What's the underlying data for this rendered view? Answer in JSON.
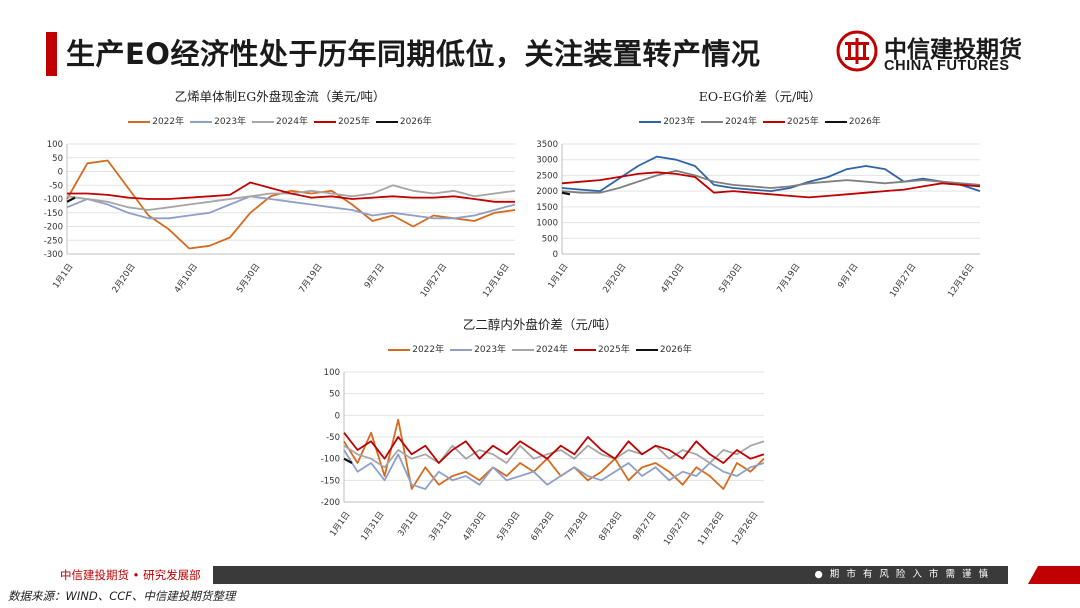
{
  "page": {
    "title": "生产EO经济性处于历年同期低位，关注装置转产情况",
    "logo_cn": "中信建投期货",
    "logo_en": "CHINA FUTURES",
    "footer_left": "中信建投期货 • 研究发展部",
    "footer_right": "● 期 市 有 风 险    入 市 需 谨 慎",
    "source": "数据来源：WIND、CCF、中信建投期货整理",
    "colors": {
      "accent_red": "#c00000",
      "s2022": "#d46b1f",
      "s2023": "#2e64a6",
      "s2023_alt": "#8ea0c8",
      "s2024": "#a6a6a6",
      "s2025": "#c00000",
      "s2026": "#111111"
    }
  },
  "chart_data": [
    {
      "type": "line",
      "title": "乙烯单体制EG外盘现金流（美元/吨）",
      "ylim": [
        -300,
        100
      ],
      "yticks": [
        100,
        50,
        0,
        -50,
        -100,
        -150,
        -200,
        -250,
        -300
      ],
      "xticks": [
        "1月1日",
        "2月20日",
        "4月10日",
        "5月30日",
        "7月19日",
        "9月7日",
        "10月27日",
        "12月16日"
      ],
      "series": [
        {
          "name": "2022年",
          "color": "#d46b1f",
          "values": [
            -100,
            30,
            40,
            -60,
            -160,
            -210,
            -280,
            -270,
            -240,
            -150,
            -90,
            -70,
            -80,
            -70,
            -120,
            -180,
            -160,
            -200,
            -160,
            -170,
            -180,
            -150,
            -140
          ]
        },
        {
          "name": "2023年",
          "color": "#8ea0c8",
          "values": [
            -130,
            -100,
            -120,
            -150,
            -170,
            -170,
            -160,
            -150,
            -120,
            -90,
            -100,
            -110,
            -120,
            -130,
            -140,
            -160,
            -150,
            -160,
            -170,
            -170,
            -160,
            -140,
            -120
          ]
        },
        {
          "name": "2024年",
          "color": "#a6a6a6",
          "values": [
            -90,
            -100,
            -110,
            -130,
            -140,
            -130,
            -120,
            -110,
            -100,
            -90,
            -80,
            -80,
            -70,
            -80,
            -90,
            -80,
            -50,
            -70,
            -80,
            -70,
            -90,
            -80,
            -70
          ]
        },
        {
          "name": "2025年",
          "color": "#c00000",
          "values": [
            -80,
            -80,
            -85,
            -95,
            -100,
            -100,
            -95,
            -90,
            -85,
            -40,
            -60,
            -80,
            -95,
            -90,
            -100,
            -95,
            -90,
            -95,
            -95,
            -90,
            -100,
            -110,
            -110
          ]
        },
        {
          "name": "2026年",
          "color": "#111111",
          "values": [
            -110,
            -95
          ]
        }
      ]
    },
    {
      "type": "line",
      "title": "EO-EG价差（元/吨）",
      "ylim": [
        0,
        3500
      ],
      "yticks": [
        3500,
        3000,
        2500,
        2000,
        1500,
        1000,
        500,
        0
      ],
      "xticks": [
        "1月1日",
        "2月20日",
        "4月10日",
        "5月30日",
        "7月19日",
        "9月7日",
        "10月27日",
        "12月16日"
      ],
      "series": [
        {
          "name": "2023年",
          "color": "#2e64a6",
          "values": [
            2100,
            2050,
            2000,
            2400,
            2800,
            3100,
            3000,
            2800,
            2200,
            2100,
            2050,
            2000,
            2100,
            2300,
            2450,
            2700,
            2800,
            2700,
            2300,
            2400,
            2300,
            2200,
            2000
          ]
        },
        {
          "name": "2024年",
          "color": "#7f7f7f",
          "values": [
            2000,
            1950,
            1950,
            2100,
            2300,
            2500,
            2650,
            2500,
            2300,
            2200,
            2150,
            2100,
            2150,
            2250,
            2300,
            2350,
            2300,
            2250,
            2300,
            2350,
            2300,
            2250,
            2200
          ]
        },
        {
          "name": "2025年",
          "color": "#c00000",
          "values": [
            2250,
            2300,
            2350,
            2450,
            2550,
            2600,
            2550,
            2450,
            1950,
            2000,
            1950,
            1900,
            1850,
            1800,
            1850,
            1900,
            1950,
            2000,
            2050,
            2150,
            2250,
            2200,
            2150
          ]
        },
        {
          "name": "2026年",
          "color": "#111111",
          "values": [
            1950,
            1900
          ]
        }
      ]
    },
    {
      "type": "line",
      "title": "乙二醇内外盘价差（元/吨）",
      "ylim": [
        -200,
        100
      ],
      "yticks": [
        100,
        50,
        0,
        -50,
        -100,
        -150,
        -200
      ],
      "xticks": [
        "1月1日",
        "1月31日",
        "3月1日",
        "3月31日",
        "4月30日",
        "5月30日",
        "6月29日",
        "7月29日",
        "8月28日",
        "9月27日",
        "10月27日",
        "11月26日",
        "12月26日"
      ],
      "series": [
        {
          "name": "2022年",
          "color": "#d46b1f",
          "values": [
            -60,
            -110,
            -40,
            -140,
            -10,
            -170,
            -120,
            -160,
            -140,
            -130,
            -150,
            -120,
            -140,
            -110,
            -130,
            -100,
            -140,
            -120,
            -150,
            -130,
            -100,
            -150,
            -120,
            -110,
            -130,
            -160,
            -120,
            -140,
            -170,
            -110,
            -130,
            -100
          ]
        },
        {
          "name": "2023年",
          "color": "#8ea0c8",
          "values": [
            -80,
            -130,
            -110,
            -150,
            -90,
            -160,
            -170,
            -130,
            -150,
            -140,
            -160,
            -120,
            -150,
            -140,
            -130,
            -160,
            -140,
            -120,
            -140,
            -150,
            -130,
            -110,
            -140,
            -120,
            -150,
            -130,
            -140,
            -110,
            -130,
            -140,
            -120,
            -110
          ]
        },
        {
          "name": "2024年",
          "color": "#a6a6a6",
          "values": [
            -70,
            -90,
            -100,
            -120,
            -80,
            -100,
            -90,
            -110,
            -70,
            -100,
            -80,
            -90,
            -110,
            -70,
            -100,
            -90,
            -80,
            -100,
            -70,
            -90,
            -100,
            -80,
            -90,
            -70,
            -100,
            -80,
            -90,
            -110,
            -80,
            -90,
            -70,
            -60
          ]
        },
        {
          "name": "2025年",
          "color": "#c00000",
          "values": [
            -40,
            -80,
            -60,
            -100,
            -50,
            -90,
            -70,
            -110,
            -80,
            -60,
            -100,
            -70,
            -90,
            -60,
            -80,
            -100,
            -70,
            -90,
            -50,
            -80,
            -100,
            -60,
            -90,
            -70,
            -80,
            -100,
            -60,
            -90,
            -110,
            -80,
            -100,
            -90
          ]
        },
        {
          "name": "2026年",
          "color": "#111111",
          "values": [
            -100,
            -110
          ]
        }
      ]
    }
  ]
}
